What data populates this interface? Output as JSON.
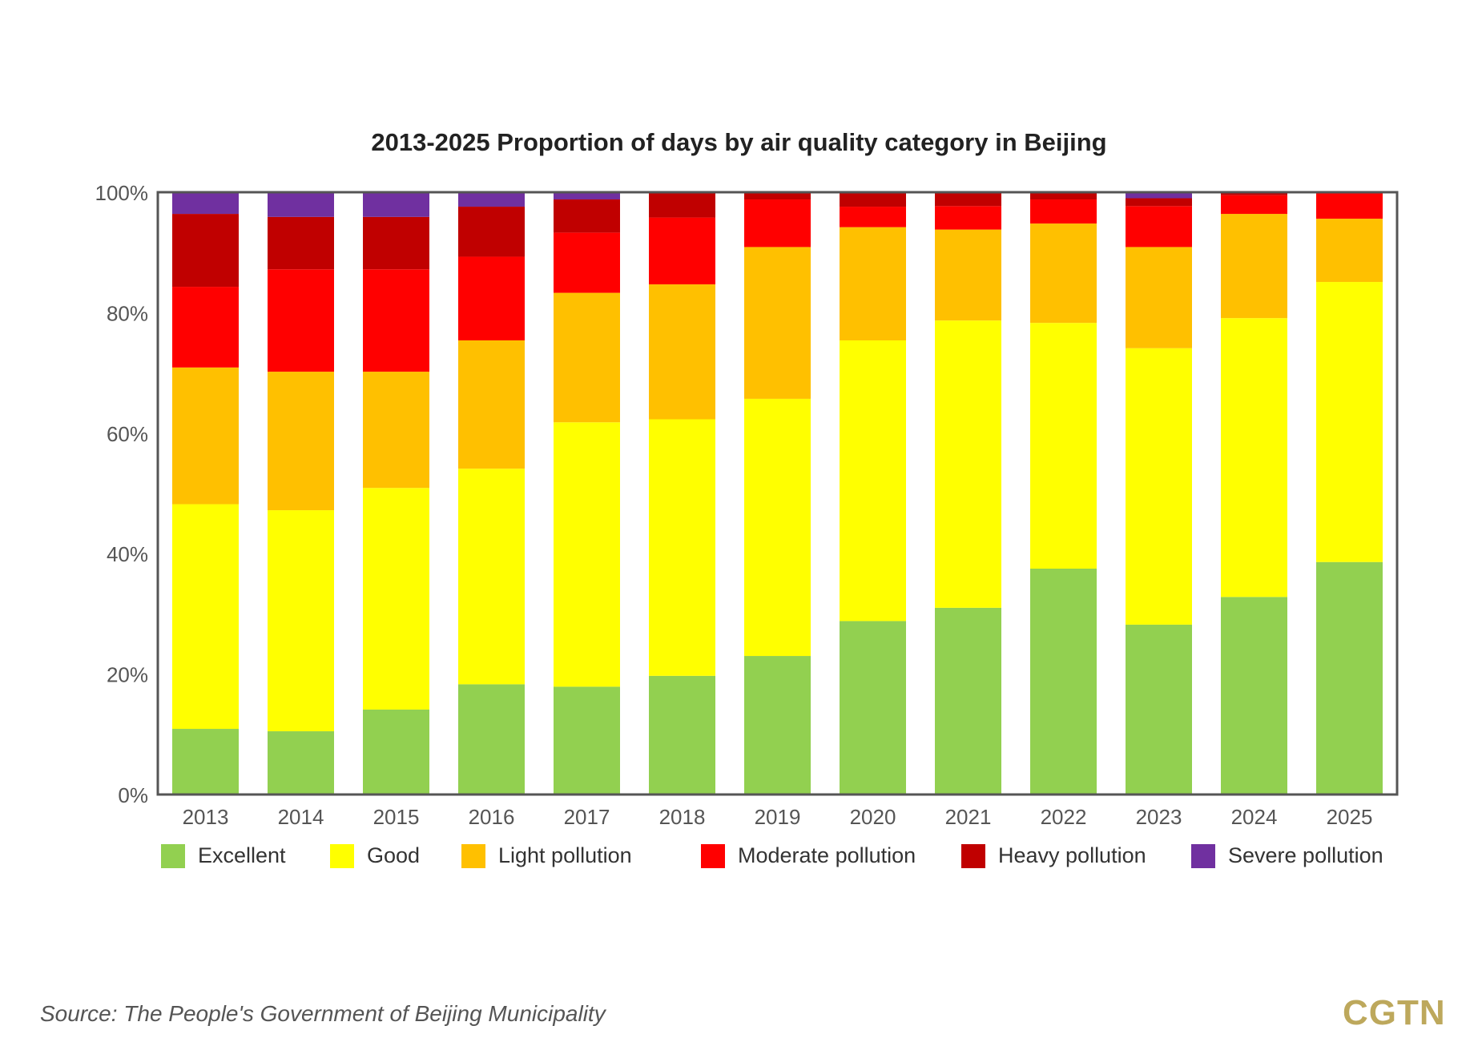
{
  "chart_data": {
    "type": "bar",
    "stacked": true,
    "title": "2013-2025 Proportion of days by air quality category in Beijing",
    "xlabel": "",
    "ylabel": "",
    "ylim": [
      0,
      100
    ],
    "yticks": [
      "0%",
      "20%",
      "40%",
      "60%",
      "80%",
      "100%"
    ],
    "grid": false,
    "legend_position": "bottom",
    "categories": [
      "2013",
      "2014",
      "2015",
      "2016",
      "2017",
      "2018",
      "2019",
      "2020",
      "2021",
      "2022",
      "2023",
      "2024",
      "2025"
    ],
    "series": [
      {
        "name": "Excellent",
        "color": "#92d050",
        "values": [
          10.9,
          10.5,
          14.1,
          18.3,
          17.9,
          19.7,
          23.0,
          28.8,
          31.0,
          37.5,
          28.2,
          32.8,
          38.6
        ]
      },
      {
        "name": "Good",
        "color": "#ffff00",
        "values": [
          37.3,
          36.7,
          36.8,
          35.8,
          43.9,
          42.6,
          42.7,
          46.6,
          47.7,
          40.8,
          45.9,
          46.3,
          46.5
        ]
      },
      {
        "name": "Light pollution",
        "color": "#ffc000",
        "values": [
          22.7,
          23.0,
          19.3,
          21.3,
          21.5,
          22.4,
          25.2,
          18.8,
          15.1,
          16.5,
          16.8,
          17.3,
          10.5
        ]
      },
      {
        "name": "Moderate pollution",
        "color": "#ff0000",
        "values": [
          13.4,
          17.0,
          17.0,
          13.9,
          10.0,
          11.1,
          7.9,
          3.4,
          3.9,
          4.0,
          6.8,
          3.1,
          4.4
        ]
      },
      {
        "name": "Heavy pollution",
        "color": "#c00000",
        "values": [
          12.1,
          8.7,
          8.7,
          8.3,
          5.5,
          4.2,
          1.2,
          2.4,
          2.2,
          1.2,
          1.3,
          0.5,
          0
        ]
      },
      {
        "name": "Severe pollution",
        "color": "#7030a0",
        "values": [
          3.6,
          4.1,
          4.1,
          2.4,
          1.2,
          0,
          0,
          0,
          0.1,
          0,
          1.0,
          0,
          0
        ]
      }
    ]
  },
  "source": "Source:  The People's Government of Beijing Municipality",
  "logo": "CGTN"
}
